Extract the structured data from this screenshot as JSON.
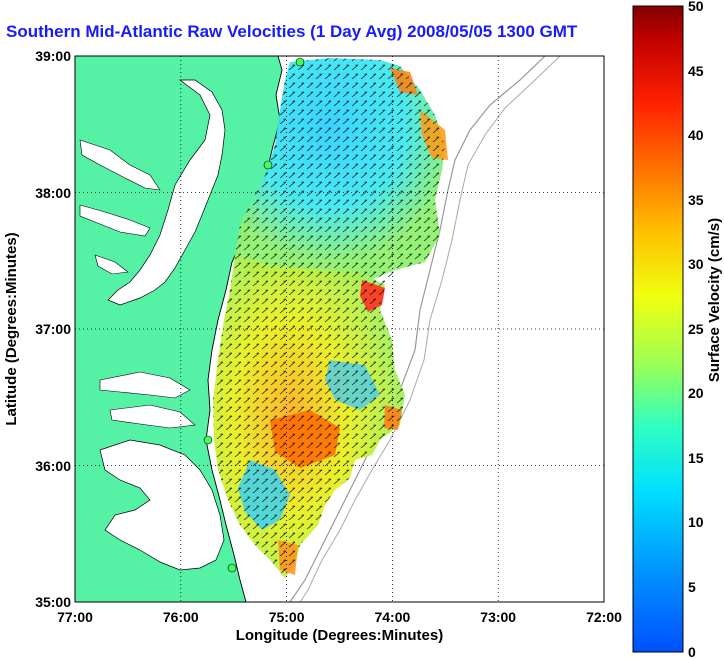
{
  "title": "Southern Mid-Atlantic Raw Velocities (1 Day Avg) 2008/05/05 1300 GMT",
  "xlabel": "Longitude (Degrees:Minutes)",
  "ylabel": "Latitude (Degrees:Minutes)",
  "colorbar_label": "Surface Velocity (cm/s)",
  "x_ticks": [
    "77:00",
    "76:00",
    "75:00",
    "74:00",
    "73:00",
    "72:00"
  ],
  "y_ticks": [
    "39:00",
    "38:00",
    "37:00",
    "36:00",
    "35:00"
  ],
  "colorbar_ticks": [
    "50",
    "45",
    "40",
    "35",
    "30",
    "25",
    "20",
    "15",
    "10",
    "5",
    "0"
  ],
  "colors": {
    "land": "#55f2a6",
    "water": "#ffffff",
    "title": "#1a1aff"
  },
  "chart_data": {
    "type": "heatmap",
    "title": "Southern Mid-Atlantic Raw Velocities (1 Day Avg) 2008/05/05 1300 GMT",
    "xlabel": "Longitude (Degrees:Minutes)",
    "ylabel": "Latitude (Degrees:Minutes)",
    "xlim": [
      -77,
      -72
    ],
    "ylim": [
      35,
      39
    ],
    "colorbar": {
      "label": "Surface Velocity (cm/s)",
      "range": [
        0,
        50
      ],
      "colormap": "jet"
    },
    "grid": true
  }
}
